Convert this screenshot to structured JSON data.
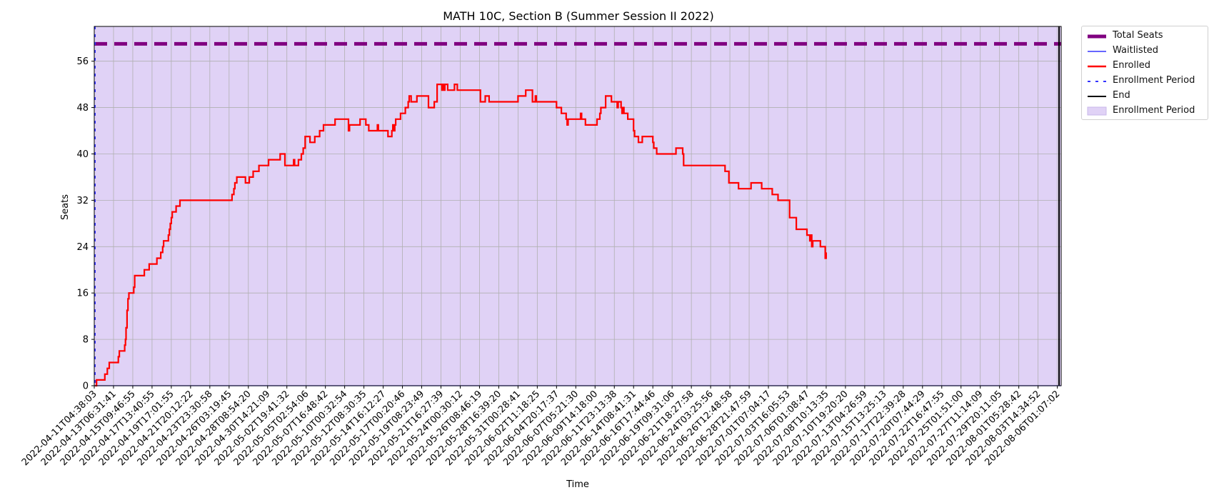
{
  "chart_data": {
    "type": "line",
    "title": "MATH 10C, Section B (Summer Session II 2022)",
    "xlabel": "Time",
    "ylabel": "Seats",
    "ylim": [
      0,
      62
    ],
    "y_ticks": [
      0,
      8,
      16,
      24,
      32,
      40,
      48,
      56
    ],
    "grid": true,
    "legend_position": "outside-top-right",
    "x_tick_labels": [
      "2022-04-11T04:38:03",
      "2022-04-13T06:31:41",
      "2022-04-15T09:46:55",
      "2022-04-17T13:40:55",
      "2022-04-19T17:01:55",
      "2022-04-21T20:12:22",
      "2022-04-23T23:30:58",
      "2022-04-26T03:19:45",
      "2022-04-28T08:54:20",
      "2022-04-30T14:21:09",
      "2022-05-02T19:41:32",
      "2022-05-05T02:54:06",
      "2022-05-07T16:48:42",
      "2022-05-10T00:32:54",
      "2022-05-12T08:30:35",
      "2022-05-14T16:12:27",
      "2022-05-17T00:20:46",
      "2022-05-19T08:23:49",
      "2022-05-21T16:27:39",
      "2022-05-24T00:30:12",
      "2022-05-26T08:46:19",
      "2022-05-28T16:39:20",
      "2022-05-31T00:28:41",
      "2022-06-02T11:18:25",
      "2022-06-04T20:17:37",
      "2022-06-07T05:21:30",
      "2022-06-09T14:18:00",
      "2022-06-11T23:13:38",
      "2022-06-14T08:41:31",
      "2022-06-16T17:44:46",
      "2022-06-19T09:31:06",
      "2022-06-21T18:27:58",
      "2022-06-24T03:25:56",
      "2022-06-26T12:48:58",
      "2022-06-28T21:47:59",
      "2022-07-01T07:04:17",
      "2022-07-03T16:05:53",
      "2022-07-06T01:08:47",
      "2022-07-08T10:13:35",
      "2022-07-10T19:20:20",
      "2022-07-13T04:26:59",
      "2022-07-15T13:25:13",
      "2022-07-17T22:39:28",
      "2022-07-20T07:44:29",
      "2022-07-22T16:47:55",
      "2022-07-25T01:51:00",
      "2022-07-27T11:14:09",
      "2022-07-29T20:11:05",
      "2022-08-01T05:28:42",
      "2022-08-03T14:34:52",
      "2022-08-06T01:07:02"
    ],
    "x_range": [
      0,
      50.2
    ],
    "total_seats": 59,
    "series": [
      {
        "name": "Enrolled",
        "color": "#ff0000",
        "points": [
          [
            0.05,
            0
          ],
          [
            0.12,
            1
          ],
          [
            0.5,
            1
          ],
          [
            0.55,
            2
          ],
          [
            0.68,
            3
          ],
          [
            0.78,
            4
          ],
          [
            1.2,
            4
          ],
          [
            1.25,
            5
          ],
          [
            1.3,
            6
          ],
          [
            1.55,
            6
          ],
          [
            1.58,
            7
          ],
          [
            1.62,
            8
          ],
          [
            1.65,
            10
          ],
          [
            1.7,
            13
          ],
          [
            1.75,
            15
          ],
          [
            1.8,
            16
          ],
          [
            2.0,
            16
          ],
          [
            2.05,
            17
          ],
          [
            2.1,
            19
          ],
          [
            2.55,
            19
          ],
          [
            2.6,
            20
          ],
          [
            2.8,
            20
          ],
          [
            2.85,
            21
          ],
          [
            3.2,
            21
          ],
          [
            3.25,
            22
          ],
          [
            3.4,
            22
          ],
          [
            3.45,
            23
          ],
          [
            3.55,
            24
          ],
          [
            3.6,
            25
          ],
          [
            3.8,
            25
          ],
          [
            3.85,
            26
          ],
          [
            3.9,
            27
          ],
          [
            3.95,
            28
          ],
          [
            4.0,
            29
          ],
          [
            4.05,
            30
          ],
          [
            4.2,
            30
          ],
          [
            4.25,
            31
          ],
          [
            4.4,
            31
          ],
          [
            4.45,
            32
          ],
          [
            7.1,
            32
          ],
          [
            7.15,
            33
          ],
          [
            7.25,
            34
          ],
          [
            7.3,
            35
          ],
          [
            7.4,
            36
          ],
          [
            7.8,
            36
          ],
          [
            7.85,
            35
          ],
          [
            8.0,
            35
          ],
          [
            8.05,
            36
          ],
          [
            8.2,
            36
          ],
          [
            8.25,
            37
          ],
          [
            8.5,
            37
          ],
          [
            8.55,
            38
          ],
          [
            9.0,
            38
          ],
          [
            9.05,
            39
          ],
          [
            9.6,
            39
          ],
          [
            9.65,
            40
          ],
          [
            9.85,
            40
          ],
          [
            9.9,
            38
          ],
          [
            10.3,
            38
          ],
          [
            10.35,
            39
          ],
          [
            10.4,
            38
          ],
          [
            10.55,
            38
          ],
          [
            10.6,
            39
          ],
          [
            10.7,
            39
          ],
          [
            10.75,
            40
          ],
          [
            10.85,
            41
          ],
          [
            10.95,
            43
          ],
          [
            11.15,
            43
          ],
          [
            11.2,
            42
          ],
          [
            11.4,
            42
          ],
          [
            11.45,
            43
          ],
          [
            11.65,
            43
          ],
          [
            11.7,
            44
          ],
          [
            11.85,
            44
          ],
          [
            11.9,
            45
          ],
          [
            12.45,
            45
          ],
          [
            12.5,
            46
          ],
          [
            13.15,
            46
          ],
          [
            13.2,
            44
          ],
          [
            13.25,
            45
          ],
          [
            13.75,
            45
          ],
          [
            13.8,
            46
          ],
          [
            14.05,
            46
          ],
          [
            14.1,
            45
          ],
          [
            14.2,
            45
          ],
          [
            14.25,
            44
          ],
          [
            14.65,
            44
          ],
          [
            14.7,
            45
          ],
          [
            14.75,
            44
          ],
          [
            15.2,
            44
          ],
          [
            15.25,
            43
          ],
          [
            15.4,
            43
          ],
          [
            15.45,
            44
          ],
          [
            15.5,
            45
          ],
          [
            15.55,
            44
          ],
          [
            15.6,
            45
          ],
          [
            15.65,
            46
          ],
          [
            15.85,
            46
          ],
          [
            15.9,
            47
          ],
          [
            16.1,
            47
          ],
          [
            16.15,
            48
          ],
          [
            16.25,
            48
          ],
          [
            16.3,
            49
          ],
          [
            16.35,
            50
          ],
          [
            16.45,
            49
          ],
          [
            16.7,
            49
          ],
          [
            16.75,
            50
          ],
          [
            17.3,
            50
          ],
          [
            17.35,
            48
          ],
          [
            17.6,
            48
          ],
          [
            17.65,
            49
          ],
          [
            17.75,
            49
          ],
          [
            17.8,
            52
          ],
          [
            18.0,
            52
          ],
          [
            18.05,
            51
          ],
          [
            18.1,
            52
          ],
          [
            18.15,
            51
          ],
          [
            18.2,
            52
          ],
          [
            18.3,
            52
          ],
          [
            18.35,
            51
          ],
          [
            18.65,
            51
          ],
          [
            18.7,
            52
          ],
          [
            18.8,
            52
          ],
          [
            18.85,
            51
          ],
          [
            20.0,
            51
          ],
          [
            20.05,
            49
          ],
          [
            20.25,
            49
          ],
          [
            20.3,
            50
          ],
          [
            20.45,
            50
          ],
          [
            20.5,
            49
          ],
          [
            21.95,
            49
          ],
          [
            22.0,
            50
          ],
          [
            22.35,
            50
          ],
          [
            22.4,
            51
          ],
          [
            22.7,
            51
          ],
          [
            22.75,
            49
          ],
          [
            22.85,
            49
          ],
          [
            22.9,
            50
          ],
          [
            22.95,
            49
          ],
          [
            23.95,
            49
          ],
          [
            24.0,
            48
          ],
          [
            24.2,
            48
          ],
          [
            24.25,
            47
          ],
          [
            24.45,
            47
          ],
          [
            24.5,
            46
          ],
          [
            24.55,
            45
          ],
          [
            24.6,
            46
          ],
          [
            25.2,
            46
          ],
          [
            25.25,
            47
          ],
          [
            25.3,
            46
          ],
          [
            25.45,
            46
          ],
          [
            25.5,
            45
          ],
          [
            26.05,
            45
          ],
          [
            26.1,
            46
          ],
          [
            26.2,
            46
          ],
          [
            26.25,
            47
          ],
          [
            26.3,
            48
          ],
          [
            26.5,
            48
          ],
          [
            26.55,
            50
          ],
          [
            26.8,
            50
          ],
          [
            26.85,
            49
          ],
          [
            27.1,
            49
          ],
          [
            27.15,
            48
          ],
          [
            27.2,
            49
          ],
          [
            27.3,
            49
          ],
          [
            27.35,
            48
          ],
          [
            27.4,
            47
          ],
          [
            27.45,
            48
          ],
          [
            27.5,
            47
          ],
          [
            27.65,
            47
          ],
          [
            27.7,
            46
          ],
          [
            27.95,
            46
          ],
          [
            28.0,
            44
          ],
          [
            28.05,
            43
          ],
          [
            28.2,
            43
          ],
          [
            28.25,
            42
          ],
          [
            28.4,
            42
          ],
          [
            28.45,
            43
          ],
          [
            28.95,
            43
          ],
          [
            29.0,
            42
          ],
          [
            29.05,
            41
          ],
          [
            29.15,
            41
          ],
          [
            29.2,
            40
          ],
          [
            30.15,
            40
          ],
          [
            30.2,
            41
          ],
          [
            30.5,
            41
          ],
          [
            30.55,
            40
          ],
          [
            30.6,
            38
          ],
          [
            32.7,
            38
          ],
          [
            32.75,
            37
          ],
          [
            32.9,
            37
          ],
          [
            32.95,
            35
          ],
          [
            33.4,
            35
          ],
          [
            33.45,
            34
          ],
          [
            34.05,
            34
          ],
          [
            34.1,
            35
          ],
          [
            34.6,
            35
          ],
          [
            34.65,
            34
          ],
          [
            35.15,
            34
          ],
          [
            35.2,
            33
          ],
          [
            35.45,
            33
          ],
          [
            35.5,
            32
          ],
          [
            36.05,
            32
          ],
          [
            36.1,
            29
          ],
          [
            36.4,
            29
          ],
          [
            36.45,
            27
          ],
          [
            36.95,
            27
          ],
          [
            37.0,
            26
          ],
          [
            37.1,
            26
          ],
          [
            37.15,
            25
          ],
          [
            37.2,
            26
          ],
          [
            37.25,
            24
          ],
          [
            37.3,
            25
          ],
          [
            37.65,
            25
          ],
          [
            37.7,
            24
          ],
          [
            37.9,
            24
          ],
          [
            37.95,
            22
          ],
          [
            38.0,
            23
          ]
        ]
      }
    ]
  },
  "legend": {
    "items": [
      {
        "label": "Total Seats",
        "color": "#800080"
      },
      {
        "label": "Waitlisted",
        "color": "#3333ff"
      },
      {
        "label": "Enrolled",
        "color": "#ff0000"
      },
      {
        "label": "Enrollment Period",
        "color": "#3333ff"
      },
      {
        "label": "End",
        "color": "#000000"
      },
      {
        "label": "Enrollment Period",
        "color": "#e0d2f6"
      }
    ]
  }
}
